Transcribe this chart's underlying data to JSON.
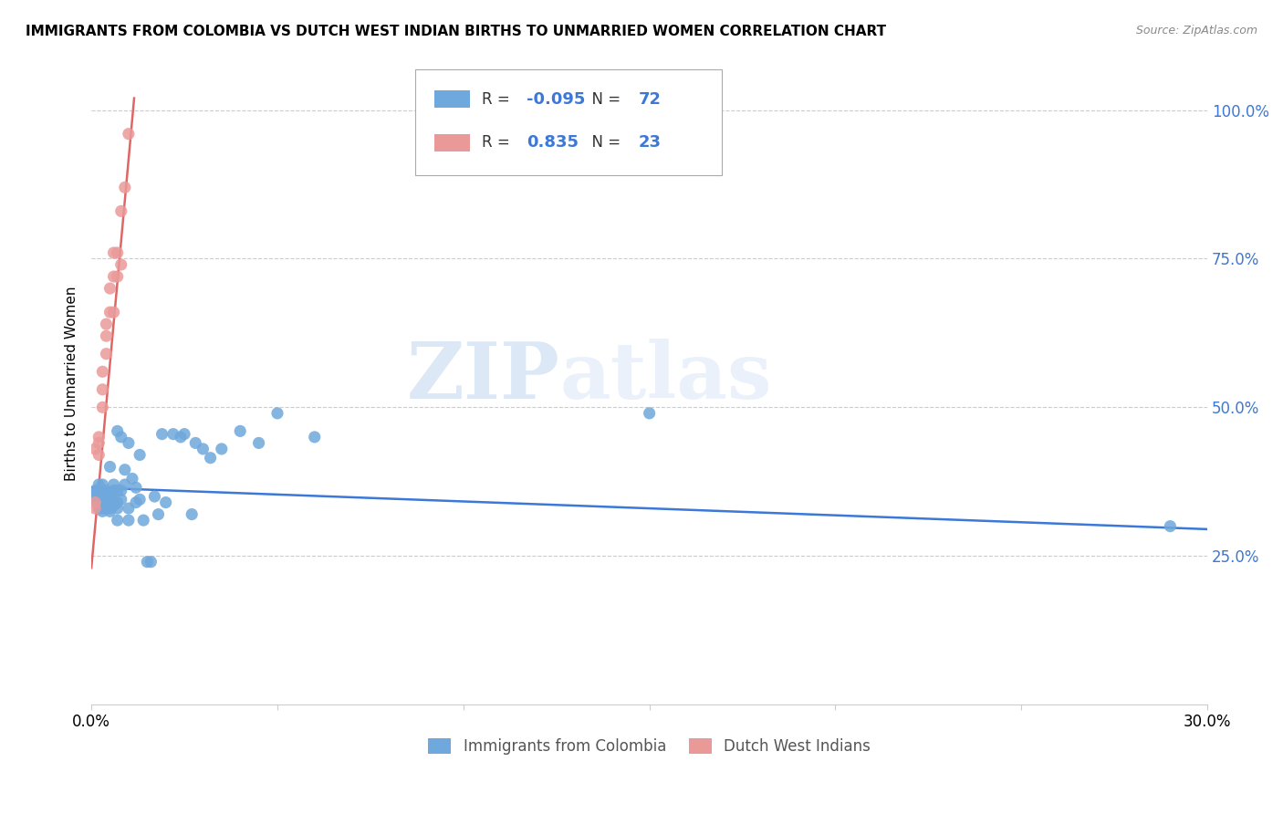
{
  "title": "IMMIGRANTS FROM COLOMBIA VS DUTCH WEST INDIAN BIRTHS TO UNMARRIED WOMEN CORRELATION CHART",
  "source": "Source: ZipAtlas.com",
  "ylabel": "Births to Unmarried Women",
  "legend_label1": "Immigrants from Colombia",
  "legend_label2": "Dutch West Indians",
  "r1": "-0.095",
  "n1": "72",
  "r2": "0.835",
  "n2": "23",
  "color_blue": "#6fa8dc",
  "color_pink": "#ea9999",
  "color_blue_line": "#3c78d8",
  "color_pink_line": "#e06666",
  "watermark_zip": "ZIP",
  "watermark_atlas": "atlas",
  "blue_points_x": [
    0.001,
    0.001,
    0.001,
    0.001,
    0.002,
    0.002,
    0.002,
    0.002,
    0.002,
    0.003,
    0.003,
    0.003,
    0.003,
    0.003,
    0.003,
    0.003,
    0.003,
    0.004,
    0.004,
    0.004,
    0.004,
    0.004,
    0.004,
    0.005,
    0.005,
    0.005,
    0.005,
    0.005,
    0.005,
    0.006,
    0.006,
    0.006,
    0.006,
    0.007,
    0.007,
    0.007,
    0.007,
    0.007,
    0.008,
    0.008,
    0.008,
    0.009,
    0.009,
    0.01,
    0.01,
    0.01,
    0.011,
    0.012,
    0.012,
    0.013,
    0.013,
    0.014,
    0.015,
    0.016,
    0.017,
    0.018,
    0.019,
    0.02,
    0.022,
    0.024,
    0.025,
    0.027,
    0.028,
    0.03,
    0.032,
    0.035,
    0.04,
    0.045,
    0.05,
    0.06,
    0.15,
    0.29
  ],
  "blue_points_y": [
    0.345,
    0.35,
    0.355,
    0.36,
    0.33,
    0.34,
    0.345,
    0.355,
    0.37,
    0.325,
    0.33,
    0.335,
    0.345,
    0.35,
    0.355,
    0.36,
    0.37,
    0.33,
    0.335,
    0.34,
    0.35,
    0.355,
    0.36,
    0.325,
    0.33,
    0.335,
    0.345,
    0.35,
    0.4,
    0.335,
    0.34,
    0.36,
    0.37,
    0.31,
    0.33,
    0.34,
    0.36,
    0.46,
    0.345,
    0.36,
    0.45,
    0.37,
    0.395,
    0.31,
    0.33,
    0.44,
    0.38,
    0.34,
    0.365,
    0.345,
    0.42,
    0.31,
    0.24,
    0.24,
    0.35,
    0.32,
    0.455,
    0.34,
    0.455,
    0.45,
    0.455,
    0.32,
    0.44,
    0.43,
    0.415,
    0.43,
    0.46,
    0.44,
    0.49,
    0.45,
    0.49,
    0.3
  ],
  "pink_points_x": [
    0.001,
    0.001,
    0.001,
    0.002,
    0.002,
    0.002,
    0.003,
    0.003,
    0.003,
    0.004,
    0.004,
    0.004,
    0.005,
    0.005,
    0.006,
    0.006,
    0.006,
    0.007,
    0.007,
    0.008,
    0.008,
    0.009,
    0.01
  ],
  "pink_points_y": [
    0.33,
    0.34,
    0.43,
    0.42,
    0.44,
    0.45,
    0.5,
    0.53,
    0.56,
    0.59,
    0.62,
    0.64,
    0.66,
    0.7,
    0.66,
    0.72,
    0.76,
    0.72,
    0.76,
    0.74,
    0.83,
    0.87,
    0.96
  ],
  "blue_line_x": [
    0.0,
    0.3
  ],
  "blue_line_y": [
    0.365,
    0.295
  ],
  "pink_line_x": [
    0.0,
    0.0115
  ],
  "pink_line_y": [
    0.23,
    1.02
  ],
  "xlim": [
    0.0,
    0.3
  ],
  "ylim": [
    0.0,
    1.08
  ],
  "yticks": [
    0.25,
    0.5,
    0.75,
    1.0
  ],
  "ytick_labels": [
    "25.0%",
    "50.0%",
    "75.0%",
    "100.0%"
  ],
  "xtick_positions": [
    0.0,
    0.05,
    0.1,
    0.15,
    0.2,
    0.25,
    0.3
  ],
  "xtick_labels": [
    "0.0%",
    "",
    "",
    "",
    "",
    "",
    "30.0%"
  ]
}
